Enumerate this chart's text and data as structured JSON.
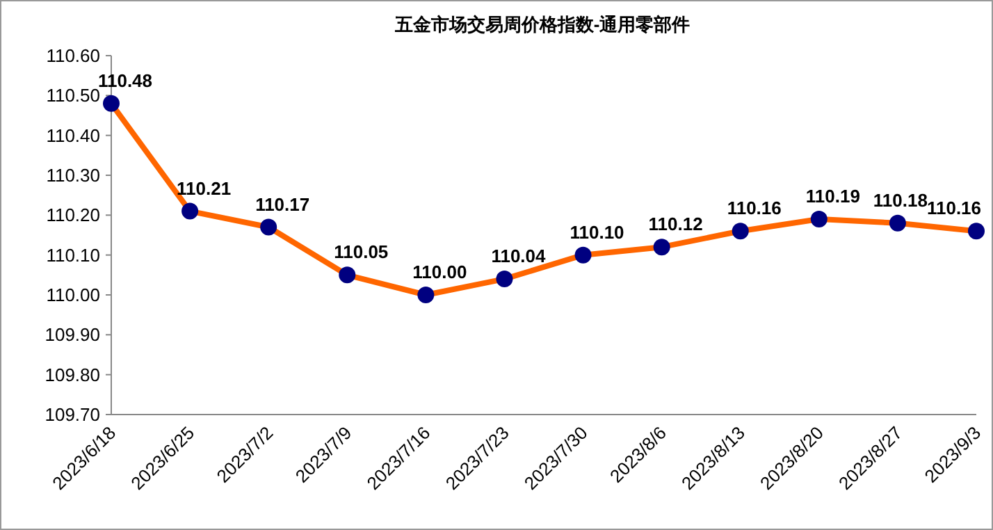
{
  "chart_data": {
    "type": "line",
    "title": "五金市场交易周价格指数-通用零部件",
    "categories": [
      "2023/6/18",
      "2023/6/25",
      "2023/7/2",
      "2023/7/9",
      "2023/7/16",
      "2023/7/23",
      "2023/7/30",
      "2023/8/6",
      "2023/8/13",
      "2023/8/20",
      "2023/8/27",
      "2023/9/3"
    ],
    "series": [
      {
        "color": "#ff6600",
        "colors": [
          "#000080",
          "#000080",
          "#000080",
          "#000080",
          "#000080",
          "#000080",
          "#000080",
          "#000080",
          "#000080",
          "#000080",
          "#000080",
          "#000080"
        ],
        "values": [
          110.48,
          110.21,
          110.17,
          110.05,
          110.0,
          110.04,
          110.1,
          110.12,
          110.16,
          110.19,
          110.18,
          110.16
        ],
        "value_labels": [
          "110.48",
          "110.21",
          "110.17",
          "110.05",
          "110.00",
          "110.04",
          "110.10",
          "110.12",
          "110.16",
          "110.19",
          "110.18",
          "110.16"
        ]
      }
    ],
    "ylim": [
      109.7,
      110.6
    ],
    "yticks": [
      {
        "value": 109.7,
        "label": "109.70"
      },
      {
        "value": 109.8,
        "label": "109.80"
      },
      {
        "value": 109.9,
        "label": "109.90"
      },
      {
        "value": 110.0,
        "label": "110.00"
      },
      {
        "value": 110.1,
        "label": "110.10"
      },
      {
        "value": 110.2,
        "label": "110.20"
      },
      {
        "value": 110.3,
        "label": "110.30"
      },
      {
        "value": 110.4,
        "label": "110.40"
      },
      {
        "value": 110.5,
        "label": "110.50"
      },
      {
        "value": 110.6,
        "label": "110.60"
      }
    ],
    "marker": "circle",
    "line_style": "solid"
  }
}
